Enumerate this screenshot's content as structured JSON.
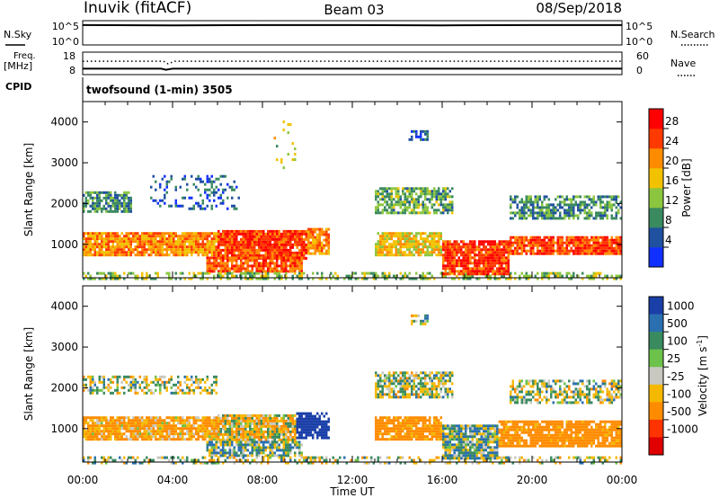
{
  "header": {
    "station": "Inuvik (fitACF)",
    "beam": "Beam 03",
    "date": "08/Sep/2018"
  },
  "panels": {
    "nsky": {
      "label": "N.Sky",
      "right_label": "N.Search",
      "left_ticks": [
        "10^5",
        "10^0"
      ],
      "right_ticks": [
        "10^5",
        "10^0"
      ],
      "series": [
        {
          "x": 0,
          "v": 4.6
        },
        {
          "x": 0.15,
          "v": 4.6
        },
        {
          "x": 4,
          "v": 4.55
        },
        {
          "x": 8,
          "v": 4.6
        },
        {
          "x": 12,
          "v": 4.6
        },
        {
          "x": 16,
          "v": 4.55
        },
        {
          "x": 20,
          "v": 4.6
        },
        {
          "x": 24,
          "v": 4.6
        }
      ]
    },
    "freq": {
      "label_line1": "Freq.",
      "label_line2": "[MHz]",
      "right_label": "Nave",
      "left_ticks": [
        "18",
        "8"
      ],
      "right_ticks": [
        "60",
        "0"
      ],
      "freq_series": [
        {
          "x": 0,
          "v": 9.8
        },
        {
          "x": 3.5,
          "v": 9.8
        },
        {
          "x": 3.7,
          "v": 9.2
        },
        {
          "x": 4,
          "v": 9.8
        },
        {
          "x": 24,
          "v": 9.8
        }
      ],
      "nave_series": [
        {
          "x": 0,
          "v": 38
        },
        {
          "x": 3.6,
          "v": 38
        },
        {
          "x": 3.8,
          "v": 30
        },
        {
          "x": 4.1,
          "v": 38
        },
        {
          "x": 24,
          "v": 38
        }
      ]
    },
    "cpid": {
      "label": "CPID",
      "text": "twofsound (1-min) 3505"
    }
  },
  "axes": {
    "ylabel": "Slant Range [km]",
    "xlabel": "Time UT",
    "x_ticks": [
      "00:00",
      "04:00",
      "08:00",
      "12:00",
      "16:00",
      "20:00",
      "00:00"
    ],
    "y_ticks": [
      "1000",
      "2000",
      "3000",
      "4000"
    ]
  },
  "colorbars": {
    "power": {
      "label": "Power [dB]",
      "ticks": [
        "28",
        "24",
        "20",
        "16",
        "12",
        "8",
        "4"
      ],
      "colors": [
        "#1030ff",
        "#2050a0",
        "#3a8a60",
        "#8cc63f",
        "#f2c200",
        "#ff8c00",
        "#ff3a00",
        "#ff0000"
      ]
    },
    "velocity": {
      "label_main": "Velocity [m s",
      "label_sup": "-1",
      "label_end": "]",
      "ticks": [
        "1000",
        "500",
        "100",
        "25",
        "-25",
        "-100",
        "-500",
        "-1000"
      ],
      "colors": [
        "#1a3fa8",
        "#2a6fb0",
        "#3a8a60",
        "#6cc24a",
        "#c8c8c0",
        "#f5b800",
        "#ff8c00",
        "#ff3300",
        "#e00000"
      ]
    }
  },
  "chart_data": [
    {
      "type": "heatmap",
      "title": "Power [dB]",
      "xlabel": "Time UT",
      "ylabel": "Slant Range [km]",
      "xlim": [
        0,
        24
      ],
      "ylim": [
        180,
        4500
      ],
      "zlim": [
        0,
        32
      ],
      "bands": [
        {
          "x0": 0.0,
          "x1": 2.2,
          "y0": 1800,
          "y1": 2300,
          "v": 10,
          "d": 0.7
        },
        {
          "x0": 0.0,
          "x1": 6.0,
          "y0": 750,
          "y1": 1300,
          "v": 22,
          "d": 0.92
        },
        {
          "x0": 6.0,
          "x1": 10.0,
          "y0": 650,
          "y1": 1350,
          "v": 27,
          "d": 0.95
        },
        {
          "x0": 10.0,
          "x1": 11.0,
          "y0": 800,
          "y1": 1400,
          "v": 22,
          "d": 0.8
        },
        {
          "x0": 5.5,
          "x1": 9.8,
          "y0": 350,
          "y1": 700,
          "v": 25,
          "d": 0.85
        },
        {
          "x0": 3.0,
          "x1": 7.0,
          "y0": 1900,
          "y1": 2700,
          "v": 6,
          "d": 0.25
        },
        {
          "x0": 0.0,
          "x1": 24.0,
          "y0": 180,
          "y1": 320,
          "v": 14,
          "d": 0.45
        },
        {
          "x0": 13.0,
          "x1": 16.5,
          "y0": 1800,
          "y1": 2400,
          "v": 12,
          "d": 0.75
        },
        {
          "x0": 13.0,
          "x1": 16.0,
          "y0": 750,
          "y1": 1300,
          "v": 18,
          "d": 0.85
        },
        {
          "x0": 16.0,
          "x1": 19.0,
          "y0": 300,
          "y1": 1100,
          "v": 27,
          "d": 0.9
        },
        {
          "x0": 19.0,
          "x1": 24.0,
          "y0": 800,
          "y1": 1200,
          "v": 26,
          "d": 0.9
        },
        {
          "x0": 19.0,
          "x1": 24.0,
          "y0": 1650,
          "y1": 2200,
          "v": 10,
          "d": 0.65
        },
        {
          "x0": 8.5,
          "x1": 9.5,
          "y0": 2800,
          "y1": 4100,
          "v": 16,
          "d": 0.08
        },
        {
          "x0": 14.5,
          "x1": 15.3,
          "y0": 3550,
          "y1": 3800,
          "v": 5,
          "d": 0.6
        }
      ]
    },
    {
      "type": "heatmap",
      "title": "Velocity [m s-1]",
      "xlabel": "Time UT",
      "ylabel": "Slant Range [km]",
      "xlim": [
        0,
        24
      ],
      "ylim": [
        180,
        4500
      ],
      "zlim": [
        -1000,
        1000
      ],
      "bands": [
        {
          "x0": 0.0,
          "x1": 6.0,
          "y0": 1900,
          "y1": 2300,
          "v": 0,
          "d": 0.5
        },
        {
          "x0": 0.0,
          "x1": 6.0,
          "y0": 750,
          "y1": 1300,
          "v": -120,
          "d": 0.9
        },
        {
          "x0": 6.0,
          "x1": 9.5,
          "y0": 700,
          "y1": 1350,
          "v": -60,
          "d": 0.92
        },
        {
          "x0": 9.5,
          "x1": 11.0,
          "y0": 800,
          "y1": 1400,
          "v": 700,
          "d": 0.85
        },
        {
          "x0": 5.5,
          "x1": 9.8,
          "y0": 350,
          "y1": 700,
          "v": 60,
          "d": 0.8
        },
        {
          "x0": 0.0,
          "x1": 24.0,
          "y0": 180,
          "y1": 320,
          "v": 0,
          "d": 0.4
        },
        {
          "x0": 13.0,
          "x1": 16.5,
          "y0": 1800,
          "y1": 2400,
          "v": 0,
          "d": 0.75
        },
        {
          "x0": 13.0,
          "x1": 16.0,
          "y0": 750,
          "y1": 1300,
          "v": -200,
          "d": 0.85
        },
        {
          "x0": 16.0,
          "x1": 18.5,
          "y0": 300,
          "y1": 1100,
          "v": 50,
          "d": 0.9
        },
        {
          "x0": 18.5,
          "x1": 24.0,
          "y0": 600,
          "y1": 1200,
          "v": -200,
          "d": 0.85
        },
        {
          "x0": 19.0,
          "x1": 24.0,
          "y0": 1650,
          "y1": 2200,
          "v": 0,
          "d": 0.6
        },
        {
          "x0": 14.5,
          "x1": 15.3,
          "y0": 3550,
          "y1": 3800,
          "v": 0,
          "d": 0.6
        }
      ]
    }
  ]
}
